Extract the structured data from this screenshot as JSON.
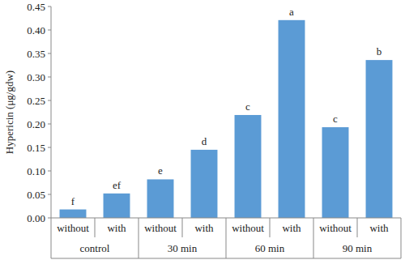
{
  "chart_data": {
    "type": "bar",
    "y_label": "Hypericin (μg/gdw)",
    "categories": [
      "without",
      "with",
      "without",
      "with",
      "without",
      "with",
      "without",
      "with"
    ],
    "groups": [
      "control",
      "30 min",
      "60 min",
      "90 min"
    ],
    "values": [
      0.018,
      0.052,
      0.082,
      0.145,
      0.219,
      0.421,
      0.193,
      0.336
    ],
    "annotations": [
      "f",
      "ef",
      "e",
      "d",
      "c",
      "a",
      "c",
      "b"
    ],
    "color": "#5b9bd5",
    "ylim": [
      0,
      0.45
    ],
    "yticks": [
      {
        "value": 0,
        "label": "0.00"
      },
      {
        "value": 0.05,
        "label": "0.05"
      },
      {
        "value": 0.1,
        "label": "0.10"
      },
      {
        "value": 0.15,
        "label": "0.15"
      },
      {
        "value": 0.2,
        "label": "0.20"
      },
      {
        "value": 0.25,
        "label": "0.25"
      },
      {
        "value": 0.3,
        "label": "0.30"
      },
      {
        "value": 0.35,
        "label": "0.35"
      },
      {
        "value": 0.4,
        "label": "0.40"
      },
      {
        "value": 0.45,
        "label": "0.45"
      }
    ],
    "grid": false
  }
}
